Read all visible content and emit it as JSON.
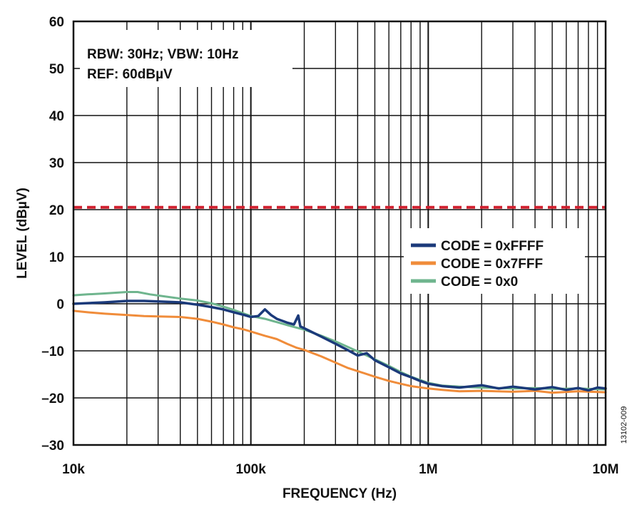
{
  "figure_id": "13102-009",
  "annotations": [
    "RBW: 30Hz; VBW: 10Hz",
    "REF: 60dBµV"
  ],
  "chart_data": {
    "type": "line",
    "title": "",
    "xlabel": "FREQUENCY (Hz)",
    "ylabel": "LEVEL (dBµV)",
    "x_scale": "log",
    "xlim": [
      10000,
      10000000
    ],
    "ylim": [
      -30,
      60
    ],
    "grid": true,
    "legend_position": "right",
    "x_ticks": [
      {
        "value": 10000,
        "label": "10k"
      },
      {
        "value": 100000,
        "label": "100k"
      },
      {
        "value": 1000000,
        "label": "1M"
      },
      {
        "value": 10000000,
        "label": "10M"
      }
    ],
    "y_ticks": [
      {
        "value": 60,
        "label": "60"
      },
      {
        "value": 50,
        "label": "50"
      },
      {
        "value": 40,
        "label": "40"
      },
      {
        "value": 30,
        "label": "30"
      },
      {
        "value": 20,
        "label": "20"
      },
      {
        "value": 10,
        "label": "10"
      },
      {
        "value": 0,
        "label": "0"
      },
      {
        "value": -10,
        "label": "–10"
      },
      {
        "value": -20,
        "label": "–20"
      },
      {
        "value": -30,
        "label": "–30"
      }
    ],
    "limit_line": {
      "y": 20.5,
      "color": "#d0202f",
      "style": "dashed"
    },
    "series": [
      {
        "name": "CODE = 0xFFFF",
        "color": "#1b3a7a",
        "points": [
          [
            10000,
            0
          ],
          [
            15000,
            0.3
          ],
          [
            20000,
            0.6
          ],
          [
            25000,
            0.6
          ],
          [
            30000,
            0.5
          ],
          [
            40000,
            0.3
          ],
          [
            50000,
            -0.2
          ],
          [
            60000,
            -0.7
          ],
          [
            70000,
            -1.2
          ],
          [
            80000,
            -1.8
          ],
          [
            90000,
            -2.3
          ],
          [
            100000,
            -2.8
          ],
          [
            110000,
            -2.6
          ],
          [
            120000,
            -1.2
          ],
          [
            130000,
            -2.4
          ],
          [
            140000,
            -3.2
          ],
          [
            160000,
            -4.0
          ],
          [
            175000,
            -4.4
          ],
          [
            185000,
            -2.5
          ],
          [
            190000,
            -4.8
          ],
          [
            210000,
            -5.6
          ],
          [
            250000,
            -7.0
          ],
          [
            300000,
            -8.5
          ],
          [
            350000,
            -9.8
          ],
          [
            400000,
            -11.0
          ],
          [
            450000,
            -10.5
          ],
          [
            500000,
            -12.0
          ],
          [
            600000,
            -13.5
          ],
          [
            700000,
            -14.8
          ],
          [
            800000,
            -15.6
          ],
          [
            900000,
            -16.4
          ],
          [
            1000000,
            -17.0
          ],
          [
            1200000,
            -17.5
          ],
          [
            1500000,
            -17.8
          ],
          [
            2000000,
            -17.3
          ],
          [
            2500000,
            -18.0
          ],
          [
            3000000,
            -17.6
          ],
          [
            4000000,
            -18.2
          ],
          [
            5000000,
            -17.7
          ],
          [
            6000000,
            -18.3
          ],
          [
            7000000,
            -17.9
          ],
          [
            8000000,
            -18.4
          ],
          [
            9000000,
            -17.8
          ],
          [
            10000000,
            -18.0
          ]
        ]
      },
      {
        "name": "CODE = 0x7FFF",
        "color": "#f08c3a",
        "points": [
          [
            10000,
            -1.5
          ],
          [
            12000,
            -1.8
          ],
          [
            15000,
            -2.1
          ],
          [
            20000,
            -2.4
          ],
          [
            25000,
            -2.6
          ],
          [
            30000,
            -2.7
          ],
          [
            40000,
            -2.8
          ],
          [
            50000,
            -3.2
          ],
          [
            60000,
            -3.8
          ],
          [
            70000,
            -4.4
          ],
          [
            80000,
            -5.0
          ],
          [
            90000,
            -5.4
          ],
          [
            100000,
            -5.9
          ],
          [
            120000,
            -6.8
          ],
          [
            140000,
            -7.5
          ],
          [
            160000,
            -8.5
          ],
          [
            180000,
            -9.3
          ],
          [
            200000,
            -9.8
          ],
          [
            250000,
            -11.2
          ],
          [
            300000,
            -12.5
          ],
          [
            350000,
            -13.6
          ],
          [
            400000,
            -14.3
          ],
          [
            500000,
            -15.5
          ],
          [
            600000,
            -16.4
          ],
          [
            700000,
            -17.0
          ],
          [
            800000,
            -17.5
          ],
          [
            1000000,
            -18.0
          ],
          [
            1200000,
            -18.3
          ],
          [
            1500000,
            -18.6
          ],
          [
            2000000,
            -18.5
          ],
          [
            3000000,
            -18.7
          ],
          [
            4000000,
            -18.5
          ],
          [
            5000000,
            -18.9
          ],
          [
            7000000,
            -18.6
          ],
          [
            10000000,
            -18.8
          ]
        ]
      },
      {
        "name": "CODE = 0x0",
        "color": "#6fb58e",
        "points": [
          [
            10000,
            1.8
          ],
          [
            12000,
            2.0
          ],
          [
            15000,
            2.2
          ],
          [
            20000,
            2.5
          ],
          [
            23000,
            2.5
          ],
          [
            27000,
            2.0
          ],
          [
            32000,
            1.6
          ],
          [
            40000,
            1.1
          ],
          [
            50000,
            0.7
          ],
          [
            60000,
            0.1
          ],
          [
            70000,
            -0.6
          ],
          [
            80000,
            -1.3
          ],
          [
            90000,
            -2.0
          ],
          [
            100000,
            -2.6
          ],
          [
            120000,
            -3.2
          ],
          [
            140000,
            -3.9
          ],
          [
            170000,
            -4.8
          ],
          [
            200000,
            -5.5
          ],
          [
            250000,
            -6.8
          ],
          [
            300000,
            -8.0
          ],
          [
            400000,
            -10.1
          ],
          [
            500000,
            -11.8
          ],
          [
            600000,
            -13.2
          ],
          [
            700000,
            -14.5
          ],
          [
            800000,
            -15.5
          ],
          [
            1000000,
            -16.8
          ],
          [
            1200000,
            -17.4
          ],
          [
            1500000,
            -17.6
          ],
          [
            2000000,
            -17.8
          ],
          [
            3000000,
            -18.0
          ],
          [
            4000000,
            -17.9
          ],
          [
            5000000,
            -18.1
          ],
          [
            7000000,
            -18.0
          ],
          [
            10000000,
            -18.2
          ]
        ]
      }
    ]
  }
}
